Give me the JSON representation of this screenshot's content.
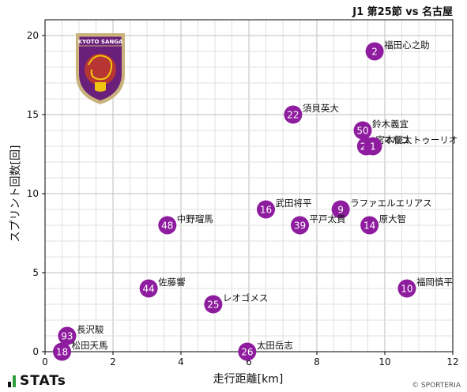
{
  "header": {
    "title": "J1 第25節 vs 名古屋"
  },
  "footer": {
    "brand": "STATs",
    "copyright": "© SPORTERIA"
  },
  "badge": {
    "top_text": "KYOTO SANGA",
    "colors": {
      "fill": "#6a1f7a",
      "accent": "#c0392b",
      "rim": "#c9b27c"
    }
  },
  "chart_data": {
    "type": "scatter",
    "title": "J1 第25節 vs 名古屋",
    "xlabel": "走行距離[km]",
    "ylabel": "スプリント回数[回]",
    "xlim": [
      0,
      12
    ],
    "ylim": [
      0,
      21
    ],
    "xticks": [
      0,
      2,
      4,
      6,
      8,
      10,
      12
    ],
    "yticks": [
      0,
      5,
      10,
      15,
      20
    ],
    "grid": true,
    "marker_color": "#8e1c9e",
    "points": [
      {
        "number": "2",
        "name": "福田心之助",
        "x": 9.7,
        "y": 19
      },
      {
        "number": "22",
        "name": "須貝英大",
        "x": 7.3,
        "y": 15
      },
      {
        "number": "50",
        "name": "鈴木義宜",
        "x": 9.35,
        "y": 14
      },
      {
        "number": "24",
        "name": "宮本優太",
        "x": 9.45,
        "y": 13
      },
      {
        "number": "1",
        "name": "マルコ トゥーリオ",
        "x": 9.65,
        "y": 13
      },
      {
        "number": "16",
        "name": "武田将平",
        "x": 6.5,
        "y": 9
      },
      {
        "number": "9",
        "name": "ラファエルエリアス",
        "x": 8.7,
        "y": 9
      },
      {
        "number": "48",
        "name": "中野瑠馬",
        "x": 3.6,
        "y": 8
      },
      {
        "number": "39",
        "name": "平戸太貴",
        "x": 7.5,
        "y": 8
      },
      {
        "number": "14",
        "name": "原大智",
        "x": 9.55,
        "y": 8
      },
      {
        "number": "44",
        "name": "佐藤響",
        "x": 3.05,
        "y": 4
      },
      {
        "number": "10",
        "name": "福岡慎平",
        "x": 10.65,
        "y": 4
      },
      {
        "number": "25",
        "name": "レオゴメス",
        "x": 4.95,
        "y": 3
      },
      {
        "number": "93",
        "name": "長沢駿",
        "x": 0.65,
        "y": 1
      },
      {
        "number": "18",
        "name": "松田天馬",
        "x": 0.5,
        "y": 0
      },
      {
        "number": "26",
        "name": "太田岳志",
        "x": 5.95,
        "y": 0
      }
    ]
  }
}
